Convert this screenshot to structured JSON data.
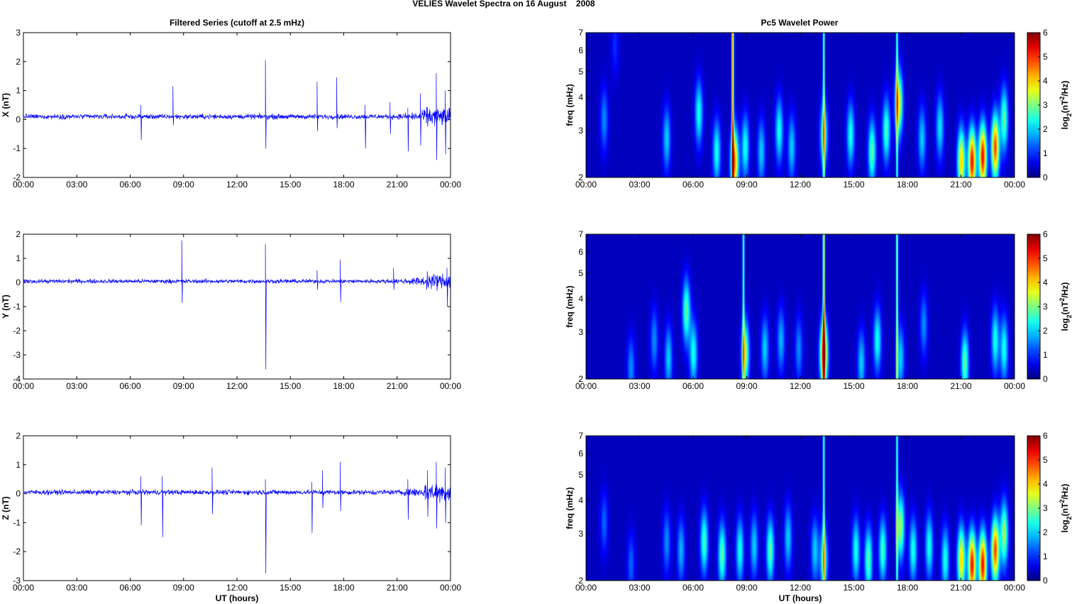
{
  "figure_title": "VELIES Wavelet Spectra on 16 August    2008",
  "left_title": "Filtered Series (cutoff at 2.5 mHz)",
  "right_title": "Pc5 Wavelet Power",
  "xlabel": "UT (hours)",
  "time_ticks": [
    "00:00",
    "03:00",
    "06:00",
    "09:00",
    "12:00",
    "15:00",
    "18:00",
    "21:00",
    "00:00"
  ],
  "spectrum_ylabel": "freq (mHz)",
  "freq_ticks": [
    "2",
    "3",
    "4",
    "5",
    "6",
    "7"
  ],
  "colorbar_ticks": [
    "0",
    "1",
    "2",
    "3",
    "4",
    "5",
    "6"
  ],
  "colors": {
    "series": "#0000ff",
    "spectrum_background": "#00008f"
  },
  "chart_data": [
    {
      "type": "line",
      "title": "Filtered Series (cutoff at 2.5 mHz)",
      "ylabel": "X (nT)",
      "ytick_labels": [
        "-2",
        "-1",
        "0",
        "1",
        "2",
        "3"
      ],
      "ylim": [
        -2,
        3
      ],
      "xlim_hours": [
        0,
        24
      ],
      "baseline": 0.1,
      "series": [
        {
          "values_approx": "dense noise about 0.1 nT, amplitude about 0.1 nT, with larger bursts after 21:00",
          "spikes": [
            {
              "t": 8.4,
              "max": 1.15,
              "min": -0.2
            },
            {
              "t": 6.6,
              "max": 0.5,
              "min": -0.7
            },
            {
              "t": 13.6,
              "max": 2.05,
              "min": -1.0
            },
            {
              "t": 16.5,
              "max": 1.3,
              "min": -0.4
            },
            {
              "t": 17.6,
              "max": 1.45,
              "min": -0.3
            },
            {
              "t": 19.2,
              "max": 0.5,
              "min": -1.0
            },
            {
              "t": 20.6,
              "max": 0.6,
              "min": -0.5
            },
            {
              "t": 21.6,
              "max": 0.4,
              "min": -1.1
            },
            {
              "t": 22.3,
              "max": 0.9,
              "min": -0.9
            },
            {
              "t": 23.2,
              "max": 1.6,
              "min": -1.4
            },
            {
              "t": 23.7,
              "max": 1.0,
              "min": -1.2
            }
          ]
        }
      ]
    },
    {
      "type": "line",
      "ylabel": "Y (nT)",
      "ytick_labels": [
        "-4",
        "-3",
        "-2",
        "-1",
        "0",
        "1",
        "2"
      ],
      "ylim": [
        -4,
        2
      ],
      "xlim_hours": [
        0,
        24
      ],
      "baseline": 0.05,
      "series": [
        {
          "values_approx": "dense noise about 0.05 nT, amplitude about 0.12 nT",
          "spikes": [
            {
              "t": 8.9,
              "max": 1.75,
              "min": -0.85
            },
            {
              "t": 13.6,
              "max": 1.6,
              "min": -3.6
            },
            {
              "t": 16.5,
              "max": 0.5,
              "min": -0.3
            },
            {
              "t": 17.8,
              "max": 0.95,
              "min": -0.8
            },
            {
              "t": 20.8,
              "max": 0.6,
              "min": -0.3
            },
            {
              "t": 23.8,
              "max": 0.6,
              "min": -1.0
            }
          ]
        }
      ]
    },
    {
      "type": "line",
      "ylabel": "Z (nT)",
      "ytick_labels": [
        "-3",
        "-2",
        "-1",
        "0",
        "1",
        "2"
      ],
      "ylim": [
        -3,
        2
      ],
      "xlim_hours": [
        0,
        24
      ],
      "baseline": 0.05,
      "series": [
        {
          "values_approx": "dense noise about 0.05 nT, amplitude about 0.12 nT, with larger bursts after 21:00",
          "spikes": [
            {
              "t": 6.6,
              "max": 0.6,
              "min": -1.1
            },
            {
              "t": 7.8,
              "max": 0.6,
              "min": -1.5
            },
            {
              "t": 10.6,
              "max": 0.9,
              "min": -0.7
            },
            {
              "t": 13.6,
              "max": 0.5,
              "min": -2.75
            },
            {
              "t": 16.2,
              "max": 0.4,
              "min": -1.35
            },
            {
              "t": 16.8,
              "max": 0.8,
              "min": -0.5
            },
            {
              "t": 17.8,
              "max": 1.1,
              "min": -0.6
            },
            {
              "t": 21.6,
              "max": 0.5,
              "min": -0.9
            },
            {
              "t": 22.7,
              "max": 0.8,
              "min": -0.8
            },
            {
              "t": 23.2,
              "max": 1.1,
              "min": -1.2
            },
            {
              "t": 23.7,
              "max": 0.9,
              "min": -1.0
            }
          ]
        }
      ]
    },
    {
      "type": "heatmap",
      "title": "Pc5 Wavelet Power",
      "ylabel": "freq (mHz)",
      "ylim_mhz": [
        2,
        7
      ],
      "yscale": "log",
      "xlim_hours": [
        0,
        24
      ],
      "colorbar_label": "log2(nT²/Hz)",
      "clim": [
        0,
        6
      ],
      "colormap": "jet",
      "blobs": [
        {
          "t": 1.0,
          "f": 3.3,
          "power": 1.5
        },
        {
          "t": 1.6,
          "f": 6.3,
          "power": 0.8
        },
        {
          "t": 4.5,
          "f": 2.8,
          "power": 2.0
        },
        {
          "t": 6.3,
          "f": 3.5,
          "power": 2.5
        },
        {
          "t": 7.3,
          "f": 2.5,
          "power": 2.5
        },
        {
          "t": 8.3,
          "f": 2.3,
          "power": 5.0
        },
        {
          "t": 8.9,
          "f": 2.6,
          "power": 2.5
        },
        {
          "t": 9.8,
          "f": 2.5,
          "power": 2.0
        },
        {
          "t": 10.8,
          "f": 3.0,
          "power": 2.5
        },
        {
          "t": 11.5,
          "f": 2.6,
          "power": 2.0
        },
        {
          "t": 13.3,
          "f": 2.9,
          "power": 2.8
        },
        {
          "t": 14.8,
          "f": 2.9,
          "power": 2.5
        },
        {
          "t": 16.0,
          "f": 2.5,
          "power": 3.0
        },
        {
          "t": 16.8,
          "f": 3.0,
          "power": 2.8
        },
        {
          "t": 17.5,
          "f": 3.8,
          "power": 4.0
        },
        {
          "t": 18.8,
          "f": 2.8,
          "power": 2.0
        },
        {
          "t": 19.8,
          "f": 3.1,
          "power": 2.2
        },
        {
          "t": 21.0,
          "f": 2.3,
          "power": 4.5
        },
        {
          "t": 21.6,
          "f": 2.3,
          "power": 6.0
        },
        {
          "t": 22.2,
          "f": 2.4,
          "power": 6.0
        },
        {
          "t": 22.9,
          "f": 2.6,
          "power": 5.5
        },
        {
          "t": 23.4,
          "f": 3.3,
          "power": 3.0
        }
      ],
      "streaks": [
        {
          "t": 8.2,
          "power": 5.0
        },
        {
          "t": 13.3,
          "power": 3.2
        },
        {
          "t": 17.4,
          "power": 3.0
        }
      ]
    },
    {
      "type": "heatmap",
      "ylabel": "freq (mHz)",
      "ylim_mhz": [
        2,
        7
      ],
      "yscale": "log",
      "xlim_hours": [
        0,
        24
      ],
      "colorbar_label": "log2(nT²/Hz)",
      "clim": [
        0,
        6
      ],
      "colormap": "jet",
      "blobs": [
        {
          "t": 2.5,
          "f": 2.2,
          "power": 1.5
        },
        {
          "t": 3.8,
          "f": 2.8,
          "power": 1.5
        },
        {
          "t": 4.6,
          "f": 2.4,
          "power": 2.0
        },
        {
          "t": 5.6,
          "f": 3.6,
          "power": 3.0
        },
        {
          "t": 6.0,
          "f": 2.5,
          "power": 2.5
        },
        {
          "t": 8.9,
          "f": 2.5,
          "power": 3.5
        },
        {
          "t": 10.0,
          "f": 2.6,
          "power": 2.0
        },
        {
          "t": 10.9,
          "f": 2.8,
          "power": 1.8
        },
        {
          "t": 11.9,
          "f": 2.6,
          "power": 1.5
        },
        {
          "t": 13.3,
          "f": 2.5,
          "power": 5.5
        },
        {
          "t": 15.4,
          "f": 2.3,
          "power": 2.0
        },
        {
          "t": 16.3,
          "f": 2.8,
          "power": 2.5
        },
        {
          "t": 17.6,
          "f": 2.4,
          "power": 2.0
        },
        {
          "t": 18.9,
          "f": 3.2,
          "power": 1.5
        },
        {
          "t": 21.2,
          "f": 2.3,
          "power": 3.0
        },
        {
          "t": 22.9,
          "f": 2.8,
          "power": 2.5
        },
        {
          "t": 23.4,
          "f": 2.6,
          "power": 2.5
        }
      ],
      "streaks": [
        {
          "t": 8.8,
          "power": 3.0
        },
        {
          "t": 13.3,
          "power": 5.0
        },
        {
          "t": 17.4,
          "power": 3.5
        }
      ]
    },
    {
      "type": "heatmap",
      "ylabel": "freq (mHz)",
      "ylim_mhz": [
        2,
        7
      ],
      "yscale": "log",
      "xlim_hours": [
        0,
        24
      ],
      "colorbar_label": "log2(nT²/Hz)",
      "clim": [
        0,
        6
      ],
      "colormap": "jet",
      "blobs": [
        {
          "t": 1.0,
          "f": 3.3,
          "power": 1.2
        },
        {
          "t": 2.5,
          "f": 2.3,
          "power": 1.2
        },
        {
          "t": 4.5,
          "f": 2.8,
          "power": 1.5
        },
        {
          "t": 5.3,
          "f": 2.6,
          "power": 1.8
        },
        {
          "t": 6.6,
          "f": 2.8,
          "power": 2.8
        },
        {
          "t": 7.6,
          "f": 2.5,
          "power": 3.0
        },
        {
          "t": 8.6,
          "f": 2.6,
          "power": 2.5
        },
        {
          "t": 9.4,
          "f": 2.7,
          "power": 2.0
        },
        {
          "t": 10.3,
          "f": 2.6,
          "power": 3.0
        },
        {
          "t": 11.3,
          "f": 2.9,
          "power": 2.0
        },
        {
          "t": 12.8,
          "f": 2.6,
          "power": 2.0
        },
        {
          "t": 13.3,
          "f": 2.4,
          "power": 2.8
        },
        {
          "t": 15.1,
          "f": 2.6,
          "power": 2.5
        },
        {
          "t": 15.8,
          "f": 2.4,
          "power": 3.0
        },
        {
          "t": 16.6,
          "f": 2.6,
          "power": 2.8
        },
        {
          "t": 17.6,
          "f": 3.2,
          "power": 3.5
        },
        {
          "t": 18.3,
          "f": 2.6,
          "power": 2.5
        },
        {
          "t": 19.2,
          "f": 2.7,
          "power": 2.5
        },
        {
          "t": 20.1,
          "f": 2.4,
          "power": 2.5
        },
        {
          "t": 21.0,
          "f": 2.4,
          "power": 4.5
        },
        {
          "t": 21.6,
          "f": 2.3,
          "power": 6.0
        },
        {
          "t": 22.2,
          "f": 2.3,
          "power": 6.0
        },
        {
          "t": 22.9,
          "f": 2.6,
          "power": 5.5
        },
        {
          "t": 23.4,
          "f": 3.0,
          "power": 3.5
        }
      ],
      "streaks": [
        {
          "t": 13.3,
          "power": 3.0
        },
        {
          "t": 17.4,
          "power": 3.0
        }
      ]
    }
  ]
}
